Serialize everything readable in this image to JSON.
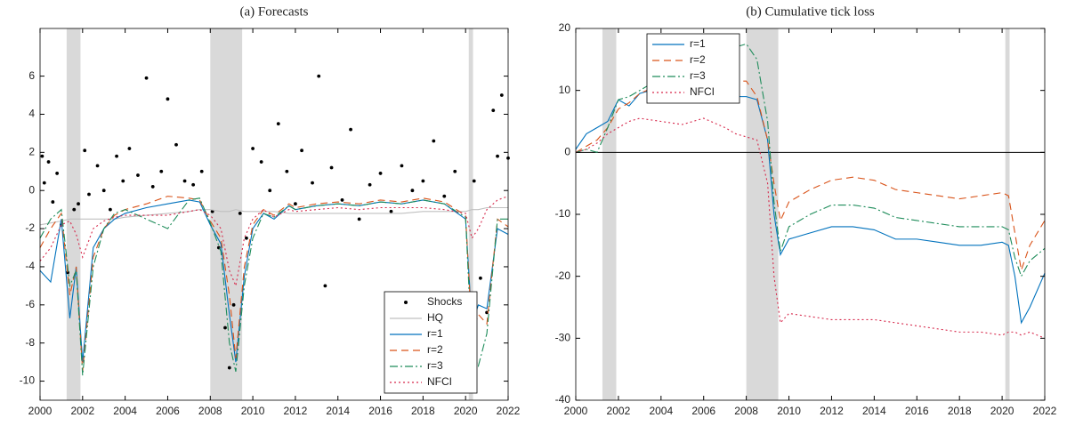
{
  "chart_data": [
    {
      "type": "line",
      "title": "(a) Forecasts",
      "xlim": [
        2000,
        2022
      ],
      "ylim": [
        -11,
        8.5
      ],
      "xticks": [
        2000,
        2002,
        2004,
        2006,
        2008,
        2010,
        2012,
        2014,
        2016,
        2018,
        2020,
        2022
      ],
      "yticks": [
        -10,
        -8,
        -6,
        -4,
        -2,
        0,
        2,
        4,
        6
      ],
      "shaded": [
        [
          2001.25,
          2001.9
        ],
        [
          2008.0,
          2009.5
        ],
        [
          2020.15,
          2020.35
        ]
      ],
      "legend": "lower right",
      "x": [
        2000,
        2000.5,
        2001,
        2001.4,
        2001.7,
        2002,
        2002.5,
        2003,
        2003.5,
        2004,
        2005,
        2006,
        2007,
        2007.5,
        2008,
        2008.5,
        2008.9,
        2009.2,
        2009.6,
        2010,
        2010.5,
        2011,
        2011.7,
        2012,
        2013,
        2014,
        2015,
        2016,
        2017,
        2018,
        2019,
        2020,
        2020.3,
        2020.6,
        2021,
        2021.5,
        2022
      ],
      "series": [
        {
          "name": "Shocks",
          "type": "scatter",
          "color": "#000000",
          "x": [
            2000.1,
            2000.2,
            2000.4,
            2000.6,
            2000.8,
            2001.0,
            2001.3,
            2001.6,
            2001.8,
            2002.1,
            2002.3,
            2002.7,
            2003.0,
            2003.3,
            2003.6,
            2003.9,
            2004.2,
            2004.6,
            2005.0,
            2005.3,
            2005.7,
            2006.0,
            2006.4,
            2006.8,
            2007.2,
            2007.6,
            2008.1,
            2008.4,
            2008.7,
            2008.9,
            2009.1,
            2009.4,
            2009.7,
            2010.0,
            2010.4,
            2010.8,
            2011.2,
            2011.6,
            2012.0,
            2012.3,
            2012.8,
            2013.1,
            2013.4,
            2013.7,
            2014.2,
            2014.6,
            2015.0,
            2015.5,
            2016.0,
            2016.5,
            2017.0,
            2017.5,
            2018.0,
            2018.5,
            2019.0,
            2019.5,
            2020.0,
            2020.4,
            2020.7,
            2021.0,
            2021.3,
            2021.5,
            2021.7,
            2022.0
          ],
          "values": [
            1.8,
            0.4,
            1.5,
            -0.6,
            0.9,
            -1.8,
            -4.3,
            -1.0,
            -0.7,
            2.1,
            -0.2,
            1.3,
            0.0,
            -1.0,
            1.8,
            0.5,
            2.2,
            0.8,
            5.9,
            0.2,
            1.0,
            4.8,
            2.4,
            0.5,
            0.3,
            1.0,
            -1.1,
            -3.0,
            -7.2,
            -9.3,
            -6.0,
            -1.2,
            -2.5,
            2.2,
            1.5,
            0.0,
            3.5,
            1.0,
            -0.7,
            2.1,
            0.4,
            6.0,
            -5.0,
            1.2,
            -0.5,
            3.2,
            -1.5,
            0.3,
            0.9,
            -1.1,
            1.3,
            0.0,
            0.5,
            2.6,
            -0.3,
            1.0,
            -8.6,
            0.5,
            -4.6,
            -6.4,
            4.2,
            1.8,
            5.0,
            1.7
          ]
        },
        {
          "name": "HQ",
          "color": "#c0c0c0",
          "dash": "solid",
          "values": [
            -1.8,
            -1.7,
            -1.6,
            -1.5,
            -1.5,
            -1.5,
            -1.5,
            -1.5,
            -1.5,
            -1.4,
            -1.3,
            -1.2,
            -1.1,
            -1.0,
            -1.0,
            -1.1,
            -1.1,
            -1.0,
            -1.1,
            -1.1,
            -1.1,
            -1.1,
            -1.2,
            -1.2,
            -1.2,
            -1.2,
            -1.2,
            -1.2,
            -1.2,
            -1.1,
            -1.1,
            -1.1,
            -1.0,
            -1.0,
            -0.9,
            -0.9,
            -0.9
          ]
        },
        {
          "name": "r=1",
          "color": "#0072bd",
          "dash": "solid",
          "values": [
            -4.2,
            -4.8,
            -1.5,
            -6.7,
            -4,
            -9,
            -3,
            -2,
            -1.5,
            -1.2,
            -0.9,
            -0.7,
            -0.5,
            -0.6,
            -1.8,
            -2.8,
            -6.5,
            -9,
            -4.5,
            -2,
            -1.2,
            -1.5,
            -0.8,
            -1.0,
            -0.8,
            -0.7,
            -0.8,
            -0.6,
            -0.7,
            -0.5,
            -0.7,
            -1.5,
            -7.0,
            -6.0,
            -6.2,
            -2.0,
            -2.3
          ]
        },
        {
          "name": "r=2",
          "color": "#d95319",
          "dash": "dashed",
          "values": [
            -3.0,
            -2.0,
            -1.2,
            -5.5,
            -4,
            -9.5,
            -3.5,
            -2,
            -1.3,
            -1.0,
            -0.7,
            -0.3,
            -0.4,
            -0.5,
            -1.6,
            -2.5,
            -5.5,
            -8.8,
            -4,
            -1.8,
            -1.0,
            -1.3,
            -0.7,
            -0.9,
            -0.7,
            -0.6,
            -0.7,
            -0.5,
            -0.6,
            -0.4,
            -0.6,
            -1.3,
            -7.5,
            -6.5,
            -7.0,
            -1.5,
            -1.9
          ]
        },
        {
          "name": "r=3",
          "color": "#1e8c5a",
          "dash": "dashdot",
          "values": [
            -2.5,
            -1.5,
            -1.0,
            -5,
            -4.2,
            -9.7,
            -4,
            -2,
            -1.2,
            -1.0,
            -1.5,
            -2.0,
            -0.5,
            -0.4,
            -1.7,
            -3.2,
            -8,
            -9.5,
            -5,
            -2.5,
            -1.2,
            -1.4,
            -0.8,
            -1.0,
            -0.8,
            -0.7,
            -0.8,
            -0.6,
            -0.7,
            -0.5,
            -0.7,
            -1.4,
            -8.5,
            -9.2,
            -7.5,
            -1.5,
            -1.5
          ]
        },
        {
          "name": "NFCI",
          "color": "#d6274a",
          "dash": "dotted",
          "values": [
            -3.7,
            -3.0,
            -1.8,
            -1.6,
            -2.3,
            -3.5,
            -2.0,
            -1.6,
            -1.4,
            -1.3,
            -1.3,
            -1.3,
            -1.1,
            -1.0,
            -1.3,
            -2.0,
            -4.2,
            -5.0,
            -2.5,
            -1.5,
            -1.0,
            -1.4,
            -1.0,
            -1.1,
            -1.0,
            -0.9,
            -1.0,
            -0.9,
            -0.9,
            -0.9,
            -1.0,
            -1.2,
            -2.5,
            -2.0,
            -1.0,
            -0.5,
            -0.3
          ]
        }
      ]
    },
    {
      "type": "line",
      "title": "(b) Cumulative tick loss",
      "xlim": [
        2000,
        2022
      ],
      "ylim": [
        -40,
        20
      ],
      "xticks": [
        2000,
        2002,
        2004,
        2006,
        2008,
        2010,
        2012,
        2014,
        2016,
        2018,
        2020,
        2022
      ],
      "yticks": [
        -40,
        -30,
        -20,
        -10,
        0,
        10,
        20
      ],
      "shaded": [
        [
          2001.25,
          2001.9
        ],
        [
          2008.0,
          2009.5
        ],
        [
          2020.15,
          2020.35
        ]
      ],
      "zero_line": true,
      "legend": "upper left",
      "x": [
        2000,
        2000.5,
        2001,
        2001.5,
        2002,
        2002.5,
        2003,
        2004,
        2005,
        2006,
        2007,
        2007.5,
        2008,
        2008.5,
        2009,
        2009.3,
        2009.6,
        2010,
        2011,
        2012,
        2013,
        2014,
        2015,
        2016,
        2017,
        2018,
        2019,
        2020,
        2020.3,
        2020.6,
        2020.9,
        2021.3,
        2022
      ],
      "series": [
        {
          "name": "r=1",
          "color": "#0072bd",
          "dash": "solid",
          "values": [
            0.5,
            3,
            4,
            5,
            8.5,
            7.5,
            9.5,
            10.5,
            10.5,
            11.5,
            10,
            9,
            9,
            8.5,
            2,
            -10,
            -16.5,
            -14,
            -13,
            -12,
            -12,
            -12.5,
            -14,
            -14,
            -14.5,
            -15,
            -15,
            -14.5,
            -15,
            -20,
            -27.5,
            -25,
            -19.5
          ]
        },
        {
          "name": "r=2",
          "color": "#d95319",
          "dash": "dashed",
          "values": [
            0,
            1,
            2,
            4,
            7,
            8,
            9.5,
            11,
            11,
            12,
            11,
            11.5,
            11.5,
            9,
            2,
            -5,
            -11,
            -8,
            -6,
            -4.5,
            -4,
            -4.5,
            -6,
            -6.5,
            -7,
            -7.5,
            -7,
            -6.5,
            -7,
            -13,
            -19,
            -15,
            -11
          ]
        },
        {
          "name": "r=3",
          "color": "#1e8c5a",
          "dash": "dashdot",
          "values": [
            0,
            0.5,
            0,
            4,
            8.5,
            9,
            10,
            12,
            12,
            14,
            16,
            17,
            17.5,
            15,
            5,
            -8,
            -16,
            -12,
            -10,
            -8.5,
            -8.5,
            -9,
            -10.5,
            -11,
            -11.5,
            -12,
            -12,
            -12,
            -12.5,
            -17,
            -20,
            -17.5,
            -15.5
          ]
        },
        {
          "name": "NFCI",
          "color": "#d6274a",
          "dash": "dotted",
          "values": [
            0,
            0.5,
            1.5,
            3,
            4,
            5,
            5.5,
            5,
            4.5,
            5.5,
            4,
            3,
            2.5,
            2,
            -5,
            -20,
            -27.5,
            -26,
            -26.5,
            -27,
            -27,
            -27,
            -27.5,
            -28,
            -28.5,
            -29,
            -29,
            -29.5,
            -29,
            -29,
            -29.5,
            -29,
            -30
          ]
        }
      ]
    }
  ]
}
